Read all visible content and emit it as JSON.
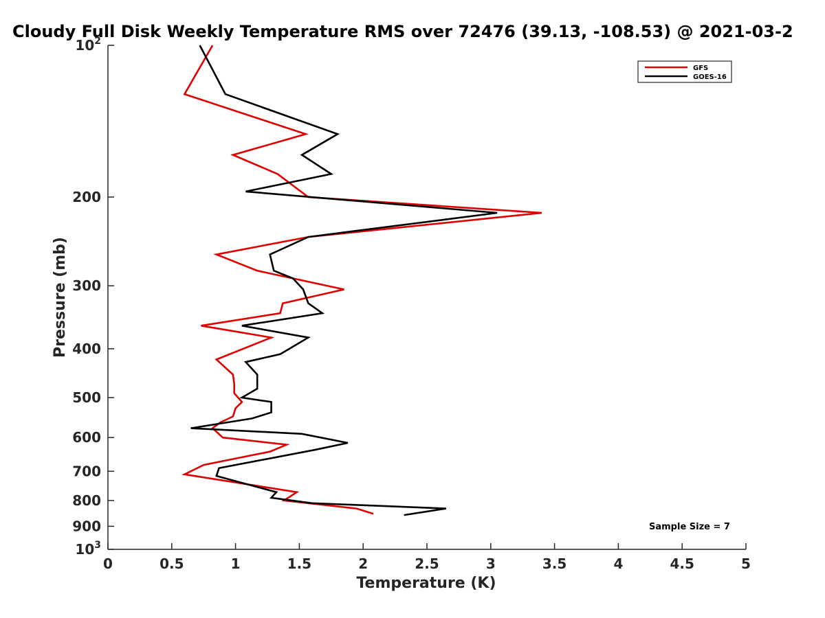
{
  "chart_data": {
    "type": "line",
    "title": "Cloudy Full Disk Weekly Temperature RMS over 72476 (39.13, -108.53) @ 2021-03-2",
    "xlabel": "Temperature (K)",
    "ylabel": "Pressure (mb)",
    "xlim": [
      0,
      5
    ],
    "ylim": [
      100,
      1000
    ],
    "y_scale": "log",
    "y_reversed": true,
    "grid": false,
    "legend_position": "top-right",
    "x_ticks": [
      0,
      0.5,
      1,
      1.5,
      2,
      2.5,
      3,
      3.5,
      4,
      4.5,
      5
    ],
    "x_tick_labels": [
      "0",
      "0.5",
      "1",
      "1.5",
      "2",
      "2.5",
      "3",
      "3.5",
      "4",
      "4.5",
      "5"
    ],
    "y_ticks": [
      100,
      200,
      300,
      400,
      500,
      600,
      700,
      800,
      900,
      1000
    ],
    "y_tick_labels": [
      {
        "base": "10",
        "exp": "2"
      },
      {
        "base": "200",
        "exp": ""
      },
      {
        "base": "300",
        "exp": ""
      },
      {
        "base": "400",
        "exp": ""
      },
      {
        "base": "500",
        "exp": ""
      },
      {
        "base": "600",
        "exp": ""
      },
      {
        "base": "700",
        "exp": ""
      },
      {
        "base": "800",
        "exp": ""
      },
      {
        "base": "900",
        "exp": ""
      },
      {
        "base": "10",
        "exp": "3"
      }
    ],
    "series": [
      {
        "name": "GFS",
        "color": "#e00000",
        "points": [
          [
            0.82,
            100
          ],
          [
            0.6,
            125
          ],
          [
            1.55,
            150
          ],
          [
            0.98,
            165
          ],
          [
            1.33,
            180
          ],
          [
            1.57,
            200
          ],
          [
            3.4,
            215
          ],
          [
            1.57,
            240
          ],
          [
            0.85,
            260
          ],
          [
            1.17,
            280
          ],
          [
            1.85,
            305
          ],
          [
            1.37,
            325
          ],
          [
            1.35,
            340
          ],
          [
            0.73,
            360
          ],
          [
            1.28,
            380
          ],
          [
            0.85,
            420
          ],
          [
            0.98,
            450
          ],
          [
            0.99,
            470
          ],
          [
            0.99,
            490
          ],
          [
            1.05,
            510
          ],
          [
            1.0,
            525
          ],
          [
            0.98,
            545
          ],
          [
            0.88,
            560
          ],
          [
            0.82,
            575
          ],
          [
            0.9,
            600
          ],
          [
            1.4,
            620
          ],
          [
            1.27,
            640
          ],
          [
            0.75,
            680
          ],
          [
            0.6,
            710
          ],
          [
            1.48,
            770
          ],
          [
            1.38,
            800
          ],
          [
            1.95,
            830
          ],
          [
            2.08,
            850
          ]
        ]
      },
      {
        "name": "GOES-16",
        "color": "#000000",
        "points": [
          [
            0.72,
            100
          ],
          [
            0.92,
            125
          ],
          [
            1.8,
            150
          ],
          [
            1.52,
            165
          ],
          [
            1.75,
            180
          ],
          [
            1.08,
            195
          ],
          [
            3.05,
            215
          ],
          [
            1.57,
            240
          ],
          [
            1.27,
            260
          ],
          [
            1.3,
            280
          ],
          [
            1.45,
            290
          ],
          [
            1.53,
            305
          ],
          [
            1.57,
            325
          ],
          [
            1.68,
            340
          ],
          [
            1.05,
            360
          ],
          [
            1.57,
            380
          ],
          [
            1.35,
            410
          ],
          [
            1.08,
            425
          ],
          [
            1.17,
            450
          ],
          [
            1.17,
            480
          ],
          [
            1.05,
            500
          ],
          [
            1.28,
            510
          ],
          [
            1.28,
            535
          ],
          [
            1.13,
            550
          ],
          [
            0.65,
            575
          ],
          [
            1.52,
            590
          ],
          [
            1.88,
            615
          ],
          [
            1.62,
            635
          ],
          [
            0.87,
            690
          ],
          [
            0.85,
            715
          ],
          [
            1.32,
            770
          ],
          [
            1.28,
            790
          ],
          [
            1.6,
            810
          ],
          [
            2.65,
            830
          ],
          [
            2.32,
            855
          ]
        ]
      }
    ],
    "annotations": [
      {
        "text": "Sample Size = 7",
        "position": "bottom-right"
      }
    ]
  }
}
